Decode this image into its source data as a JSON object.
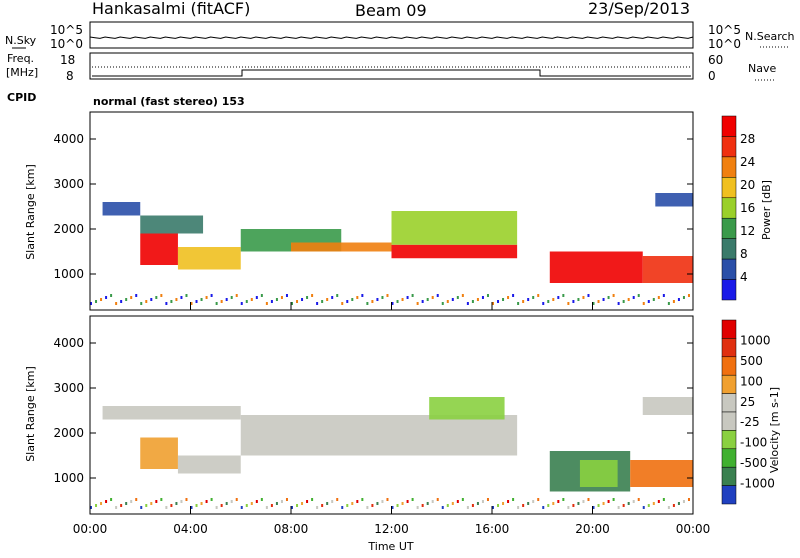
{
  "header": {
    "station": "Hankasalmi (fitACF)",
    "beam": "Beam 09",
    "date": "23/Sep/2013"
  },
  "strip": {
    "nsky_label": "N.Sky",
    "nsearch_label": "N.Search",
    "freq_label_1": "Freq.",
    "freq_label_2": "[MHz]",
    "nave_label": "Nave",
    "cpid_label": "CPID",
    "noise_left_ticks": [
      "10^5",
      "10^0"
    ],
    "noise_right_ticks": [
      "10^5",
      "10^0"
    ],
    "freq_ticks": [
      "18",
      "8"
    ],
    "nave_ticks": [
      "60",
      "0"
    ],
    "cpid_text": "normal (fast stereo) 153"
  },
  "colors": {
    "power": [
      "#1a1ae8",
      "#2a4fa8",
      "#3a7a6a",
      "#3a9a4a",
      "#9ad02a",
      "#f0c020",
      "#f08010",
      "#f03010",
      "#f00000"
    ],
    "velocity": [
      "#2040c0",
      "#3a8050",
      "#40b030",
      "#8ad040",
      "#c8c8c0",
      "#c8c8c0",
      "#f0a030",
      "#f07010",
      "#e03010",
      "#e00000"
    ]
  },
  "chart_data": [
    {
      "type": "heatmap",
      "panel": "power",
      "ylabel": "Slant Range [km]",
      "y_ticks": [
        "1000",
        "2000",
        "3000",
        "4000"
      ],
      "ylim": [
        200,
        4600
      ],
      "x_ticks": [
        "00:00",
        "04:00",
        "08:00",
        "12:00",
        "16:00",
        "20:00",
        "00:00"
      ],
      "xlabel": "Time UT",
      "colorbar_label": "Power [dB]",
      "colorbar_ticks": [
        "28",
        "24",
        "20",
        "16",
        "12",
        "8",
        "4"
      ],
      "bands": [
        {
          "t0": 0.5,
          "t1": 2.0,
          "r0": 2300,
          "r1": 2600,
          "level": 1
        },
        {
          "t0": 2.0,
          "t1": 3.5,
          "r0": 1200,
          "r1": 1900,
          "level": 8
        },
        {
          "t0": 2.0,
          "t1": 4.5,
          "r0": 1900,
          "r1": 2300,
          "level": 2
        },
        {
          "t0": 3.5,
          "t1": 6.0,
          "r0": 1100,
          "r1": 1600,
          "level": 5
        },
        {
          "t0": 6.0,
          "t1": 10.0,
          "r0": 1500,
          "r1": 2000,
          "level": 3
        },
        {
          "t0": 8.0,
          "t1": 12.0,
          "r0": 1500,
          "r1": 1700,
          "level": 6
        },
        {
          "t0": 12.0,
          "t1": 17.0,
          "r0": 1350,
          "r1": 1650,
          "level": 8
        },
        {
          "t0": 12.0,
          "t1": 17.0,
          "r0": 1650,
          "r1": 2400,
          "level": 4
        },
        {
          "t0": 18.3,
          "t1": 22.0,
          "r0": 800,
          "r1": 1500,
          "level": 8
        },
        {
          "t0": 22.0,
          "t1": 24.0,
          "r0": 800,
          "r1": 1400,
          "level": 7
        },
        {
          "t0": 22.5,
          "t1": 24.0,
          "r0": 2500,
          "r1": 2800,
          "level": 1
        }
      ]
    },
    {
      "type": "heatmap",
      "panel": "velocity",
      "ylabel": "Slant Range [km]",
      "y_ticks": [
        "1000",
        "2000",
        "3000",
        "4000"
      ],
      "ylim": [
        200,
        4600
      ],
      "x_ticks": [
        "00:00",
        "04:00",
        "08:00",
        "12:00",
        "16:00",
        "20:00",
        "00:00"
      ],
      "xlabel": "Time UT",
      "colorbar_label": "Velocity [m s-1]",
      "colorbar_ticks": [
        "1000",
        "500",
        "100",
        "25",
        "-25",
        "-100",
        "-500",
        "-1000"
      ],
      "bands": [
        {
          "t0": 0.5,
          "t1": 6.0,
          "r0": 2300,
          "r1": 2600,
          "level": 4
        },
        {
          "t0": 2.0,
          "t1": 3.5,
          "r0": 1200,
          "r1": 1900,
          "level": 6
        },
        {
          "t0": 3.5,
          "t1": 6.0,
          "r0": 1100,
          "r1": 1500,
          "level": 4
        },
        {
          "t0": 6.0,
          "t1": 17.0,
          "r0": 1500,
          "r1": 2400,
          "level": 4
        },
        {
          "t0": 13.5,
          "t1": 16.5,
          "r0": 2300,
          "r1": 2800,
          "level": 3
        },
        {
          "t0": 18.3,
          "t1": 21.5,
          "r0": 700,
          "r1": 1600,
          "level": 1
        },
        {
          "t0": 19.5,
          "t1": 21.0,
          "r0": 800,
          "r1": 1400,
          "level": 3
        },
        {
          "t0": 21.5,
          "t1": 24.0,
          "r0": 800,
          "r1": 1400,
          "level": 7
        },
        {
          "t0": 22.0,
          "t1": 24.0,
          "r0": 2400,
          "r1": 2800,
          "level": 4
        }
      ]
    }
  ]
}
